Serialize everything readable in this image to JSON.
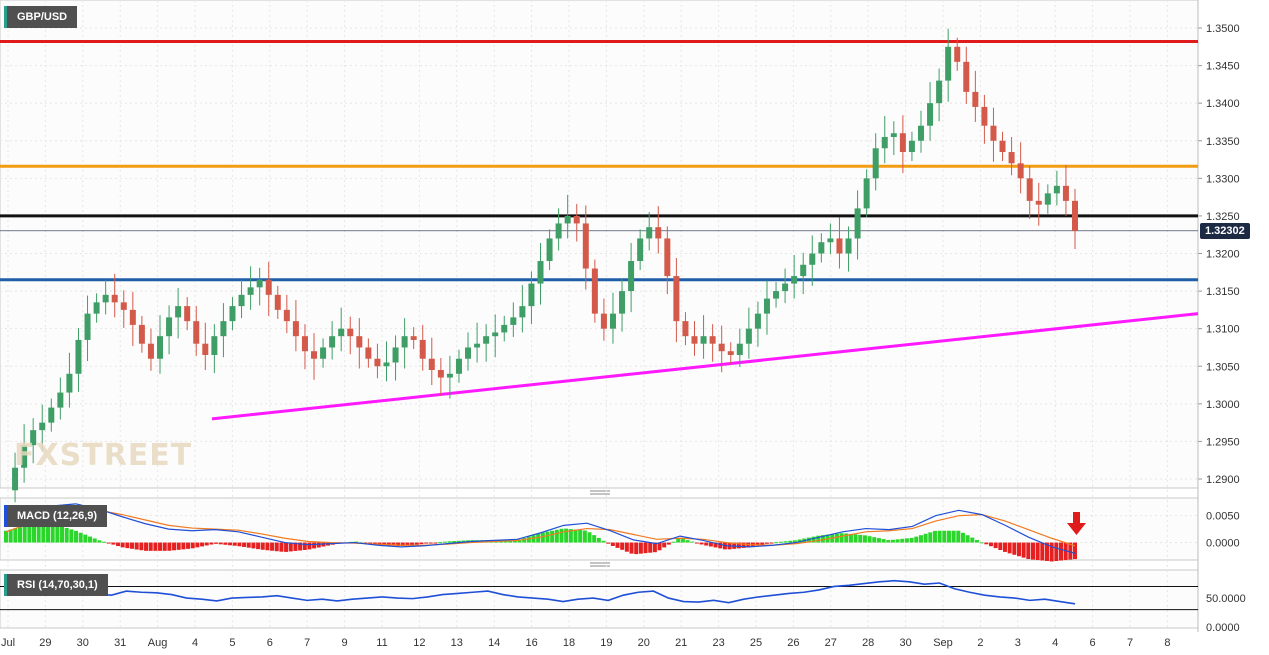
{
  "symbol": "GBP/USD",
  "macd_label": "MACD (12,26,9)",
  "rsi_label": "RSI (14,70,30,1)",
  "current_price_label": "1.32302",
  "watermark": "FXSTREET",
  "colors": {
    "up": "#3f9e66",
    "down": "#d35a4a",
    "resistance_top": "#e01b1b",
    "resistance_mid": "#f39c12",
    "level_black": "#111111",
    "support": "#1f5fa8",
    "trendline": "#ff19ff",
    "macd_line": "#1f4fd6",
    "signal_line": "#f07a20",
    "rsi_line": "#1f4fd6",
    "hist_pos": "#2bd62b",
    "hist_neg": "#e62020"
  },
  "chart_data": [
    {
      "type": "candlestick",
      "title": "GBP/USD",
      "ylim": [
        1.2885,
        1.3525
      ],
      "y_ticks": [
        "1.2900",
        "1.2950",
        "1.3000",
        "1.3050",
        "1.3100",
        "1.3150",
        "1.3200",
        "1.3250",
        "1.3300",
        "1.3350",
        "1.3400",
        "1.3450",
        "1.3500"
      ],
      "x_tick_labels": [
        "Jul",
        "29",
        "30",
        "31",
        "Aug",
        "4",
        "5",
        "6",
        "7",
        "9",
        "11",
        "12",
        "13",
        "14",
        "16",
        "18",
        "19",
        "20",
        "21",
        "23",
        "25",
        "26",
        "27",
        "28",
        "30",
        "Sep",
        "2",
        "3",
        "4",
        "6",
        "7",
        "8"
      ],
      "closes": [
        1.2885,
        1.2915,
        1.2945,
        1.2965,
        1.2975,
        1.2995,
        1.3015,
        1.304,
        1.3085,
        1.312,
        1.3135,
        1.3145,
        1.3135,
        1.3125,
        1.3105,
        1.308,
        1.306,
        1.309,
        1.3115,
        1.313,
        1.311,
        1.308,
        1.3065,
        1.309,
        1.311,
        1.313,
        1.3145,
        1.3155,
        1.3165,
        1.3145,
        1.3125,
        1.311,
        1.309,
        1.307,
        1.306,
        1.3075,
        1.309,
        1.31,
        1.309,
        1.3075,
        1.306,
        1.305,
        1.3055,
        1.3075,
        1.309,
        1.3085,
        1.306,
        1.3045,
        1.3035,
        1.304,
        1.306,
        1.3075,
        1.308,
        1.309,
        1.3095,
        1.3105,
        1.3115,
        1.313,
        1.316,
        1.319,
        1.322,
        1.324,
        1.325,
        1.324,
        1.318,
        1.312,
        1.31,
        1.312,
        1.315,
        1.319,
        1.322,
        1.3235,
        1.322,
        1.317,
        1.311,
        1.309,
        1.308,
        1.309,
        1.308,
        1.307,
        1.3065,
        1.308,
        1.31,
        1.312,
        1.314,
        1.315,
        1.316,
        1.317,
        1.3185,
        1.32,
        1.3215,
        1.322,
        1.32,
        1.322,
        1.326,
        1.33,
        1.334,
        1.3355,
        1.336,
        1.3335,
        1.335,
        1.337,
        1.34,
        1.343,
        1.3475,
        1.3455,
        1.3415,
        1.3395,
        1.337,
        1.335,
        1.3335,
        1.332,
        1.33,
        1.327,
        1.3265,
        1.328,
        1.329,
        1.327,
        1.323
      ],
      "ref_lines": [
        {
          "name": "resistance-top",
          "value": 1.3482
        },
        {
          "name": "resistance-mid",
          "value": 1.3316
        },
        {
          "name": "level-black",
          "value": 1.325
        },
        {
          "name": "support",
          "value": 1.3165
        },
        {
          "name": "trendline",
          "from": 1.298,
          "to": 1.312
        }
      ],
      "current_price": 1.32302
    },
    {
      "type": "macd",
      "title": "MACD (12,26,9)",
      "ylim": [
        -0.0025,
        0.0068
      ],
      "y_ticks": [
        "0.0050",
        "0.0000"
      ],
      "macd": [
        0.003,
        0.005,
        0.0068,
        0.0072,
        0.0062,
        0.0048,
        0.0035,
        0.0025,
        0.0022,
        0.0024,
        0.002,
        0.001,
        0.0,
        -0.0004,
        -0.0002,
        0.0,
        -0.0005,
        -0.0008,
        -0.0006,
        -0.0002,
        0.0002,
        0.0004,
        0.0006,
        0.0018,
        0.0032,
        0.0036,
        0.0022,
        0.0005,
        -0.0002,
        0.0012,
        0.0004,
        -0.0006,
        -0.0008,
        -0.0005,
        0.0,
        0.001,
        0.002,
        0.0026,
        0.0024,
        0.003,
        0.005,
        0.006,
        0.0052,
        0.0032,
        0.001,
        -0.0008,
        -0.002
      ],
      "signal": [
        0.002,
        0.0035,
        0.0052,
        0.0062,
        0.006,
        0.0052,
        0.0042,
        0.0032,
        0.0027,
        0.0025,
        0.0023,
        0.0016,
        0.0008,
        0.0002,
        0.0,
        -0.0001,
        -0.0003,
        -0.0005,
        -0.0005,
        -0.0003,
        0.0,
        0.0002,
        0.0004,
        0.001,
        0.002,
        0.0026,
        0.0024,
        0.0015,
        0.0006,
        0.0008,
        0.0006,
        0.0,
        -0.0004,
        -0.0005,
        -0.0002,
        0.0004,
        0.0012,
        0.002,
        0.0022,
        0.0026,
        0.004,
        0.005,
        0.0052,
        0.004,
        0.0024,
        0.0008,
        -0.0006
      ]
    },
    {
      "type": "rsi",
      "title": "RSI (14,70,30,1)",
      "ylim": [
        0,
        95
      ],
      "y_ticks": [
        "50.0000",
        "0.0000"
      ],
      "overbought": 70,
      "oversold": 30,
      "values": [
        70,
        76,
        80,
        78,
        68,
        56,
        57,
        55,
        62,
        60,
        59,
        56,
        50,
        48,
        45,
        50,
        51,
        52,
        54,
        50,
        46,
        48,
        45,
        48,
        50,
        52,
        50,
        49,
        52,
        56,
        58,
        60,
        62,
        56,
        52,
        50,
        48,
        44,
        48,
        50,
        46,
        55,
        60,
        62,
        50,
        44,
        43,
        46,
        42,
        48,
        52,
        55,
        58,
        60,
        64,
        70,
        72,
        75,
        78,
        80,
        78,
        74,
        76,
        66,
        60,
        55,
        52,
        50,
        46,
        48,
        44,
        40
      ]
    }
  ]
}
